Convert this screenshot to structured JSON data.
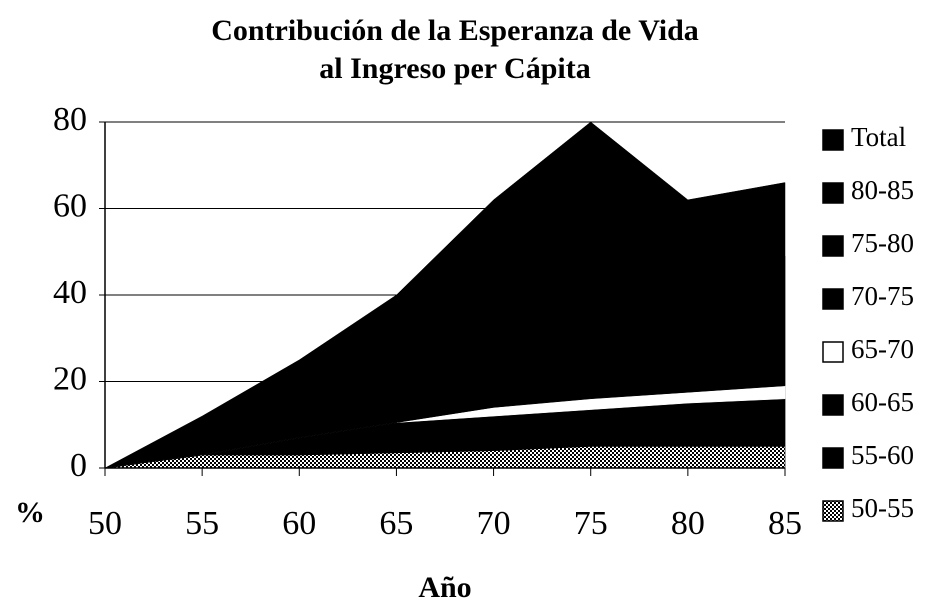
{
  "chart_data": {
    "type": "area",
    "title": [
      "Contribución de la Esperanza de Vida",
      "al Ingreso per Cápita"
    ],
    "xlabel": "Año",
    "ylabel": "%",
    "x": [
      50,
      55,
      60,
      65,
      70,
      75,
      80,
      85
    ],
    "xlim": [
      50,
      85
    ],
    "xticks": [
      50,
      55,
      60,
      65,
      70,
      75,
      80,
      85
    ],
    "ylim": [
      0,
      80
    ],
    "yticks": [
      0,
      20,
      40,
      60,
      80
    ],
    "grid": true,
    "legend": "right",
    "series": [
      {
        "name": "Total",
        "color": "#000000",
        "stacked": false,
        "values": [
          0,
          12,
          25,
          40,
          62,
          80,
          62,
          66
        ]
      },
      {
        "name": "80-85",
        "color": "#000000",
        "stacked": true,
        "values": [
          0,
          0,
          0,
          0,
          0,
          0,
          5,
          5
        ]
      },
      {
        "name": "75-80",
        "color": "#000000",
        "stacked": true,
        "values": [
          0,
          0,
          0,
          0,
          0,
          10,
          10,
          10
        ]
      },
      {
        "name": "70-75",
        "color": "#000000",
        "stacked": true,
        "values": [
          0,
          0,
          0,
          0,
          10,
          15,
          15,
          15
        ]
      },
      {
        "name": "65-70",
        "color": "#ffffff",
        "stacked": true,
        "values": [
          0,
          0,
          0,
          0,
          2,
          2.5,
          2.5,
          3
        ]
      },
      {
        "name": "60-65",
        "color": "#000000",
        "stacked": true,
        "values": [
          0,
          0,
          0,
          3,
          4,
          4,
          5,
          6
        ]
      },
      {
        "name": "55-60",
        "color": "#000000",
        "stacked": true,
        "values": [
          0,
          0,
          4,
          4,
          4,
          4.5,
          5,
          5
        ]
      },
      {
        "name": "50-55",
        "color": "#000000",
        "stacked": true,
        "pattern": "checker",
        "values": [
          0,
          3,
          3,
          3.5,
          4,
          5,
          5,
          5
        ]
      }
    ]
  }
}
